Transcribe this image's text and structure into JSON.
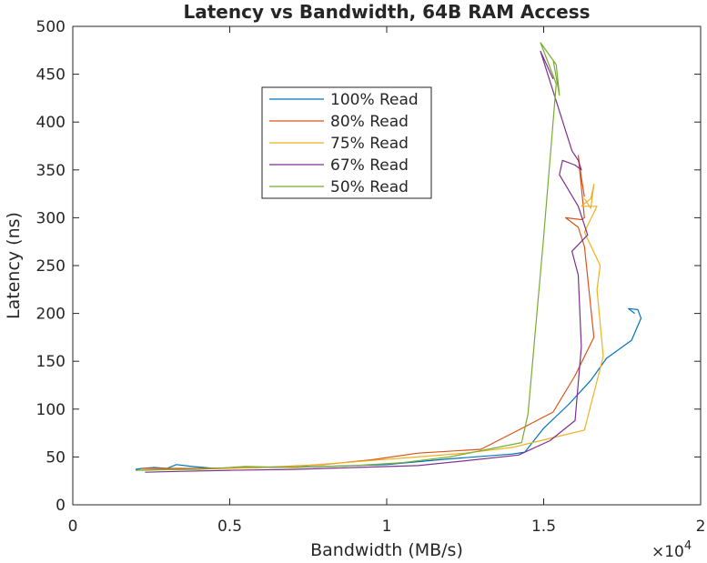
{
  "chart_data": {
    "type": "line",
    "title": "Latency vs Bandwidth, 64B RAM Access",
    "xlabel": "Bandwidth (MB/s)",
    "ylabel": "Latency (ns)",
    "x_multiplier_label": "×10",
    "x_multiplier_exponent": "4",
    "xlim": [
      0,
      20000
    ],
    "ylim": [
      0,
      500
    ],
    "x_ticks": [
      0,
      5000,
      10000,
      15000,
      20000
    ],
    "x_tick_labels": [
      "0",
      "0.5",
      "1",
      "1.5",
      "2"
    ],
    "y_ticks": [
      0,
      50,
      100,
      150,
      200,
      250,
      300,
      350,
      400,
      450,
      500
    ],
    "y_tick_labels": [
      "0",
      "50",
      "100",
      "150",
      "200",
      "250",
      "300",
      "350",
      "400",
      "450",
      "500"
    ],
    "grid": false,
    "legend_position": "top-center-left",
    "series": [
      {
        "name": "100% Read",
        "color": "#0072BD",
        "points": [
          [
            2000,
            37
          ],
          [
            2200,
            38
          ],
          [
            2600,
            39
          ],
          [
            3000,
            38
          ],
          [
            3300,
            42
          ],
          [
            3800,
            40
          ],
          [
            4500,
            38
          ],
          [
            6000,
            39
          ],
          [
            8000,
            40
          ],
          [
            10000,
            42
          ],
          [
            12000,
            48
          ],
          [
            14000,
            53
          ],
          [
            14400,
            55
          ],
          [
            15000,
            80
          ],
          [
            15800,
            105
          ],
          [
            16500,
            130
          ],
          [
            17000,
            153
          ],
          [
            17800,
            172
          ],
          [
            18100,
            195
          ],
          [
            18000,
            204
          ],
          [
            17700,
            205
          ],
          [
            17900,
            200
          ]
        ]
      },
      {
        "name": "80% Read",
        "color": "#D95319",
        "points": [
          [
            2200,
            38
          ],
          [
            3000,
            38
          ],
          [
            4000,
            38
          ],
          [
            6000,
            39
          ],
          [
            8000,
            42
          ],
          [
            9500,
            47
          ],
          [
            11000,
            54
          ],
          [
            13000,
            58
          ],
          [
            14200,
            78
          ],
          [
            15300,
            97
          ],
          [
            16000,
            135
          ],
          [
            16600,
            175
          ],
          [
            16300,
            270
          ],
          [
            16100,
            290
          ],
          [
            15700,
            300
          ],
          [
            16200,
            298
          ],
          [
            16300,
            300
          ],
          [
            16100,
            365
          ],
          [
            16200,
            342
          ],
          [
            16300,
            322
          ]
        ]
      },
      {
        "name": "75% Read",
        "color": "#EDB120",
        "points": [
          [
            2200,
            36
          ],
          [
            3500,
            37
          ],
          [
            5000,
            38
          ],
          [
            7000,
            40
          ],
          [
            9000,
            45
          ],
          [
            11000,
            50
          ],
          [
            12500,
            54
          ],
          [
            14000,
            60
          ],
          [
            14900,
            67
          ],
          [
            16300,
            78
          ],
          [
            16900,
            155
          ],
          [
            16700,
            225
          ],
          [
            16800,
            250
          ],
          [
            16300,
            285
          ],
          [
            16700,
            312
          ],
          [
            16200,
            312
          ],
          [
            16500,
            320
          ],
          [
            16600,
            335
          ],
          [
            16500,
            310
          ],
          [
            16300,
            320
          ]
        ]
      },
      {
        "name": "67% Read",
        "color": "#7E2F8E",
        "points": [
          [
            2300,
            34
          ],
          [
            3500,
            35
          ],
          [
            5000,
            36
          ],
          [
            7000,
            37
          ],
          [
            9000,
            39
          ],
          [
            11000,
            41
          ],
          [
            12500,
            46
          ],
          [
            14200,
            52
          ],
          [
            15200,
            67
          ],
          [
            16000,
            88
          ],
          [
            16200,
            165
          ],
          [
            16100,
            240
          ],
          [
            15900,
            265
          ],
          [
            16400,
            282
          ],
          [
            16100,
            312
          ],
          [
            15500,
            345
          ],
          [
            15600,
            360
          ],
          [
            16000,
            355
          ],
          [
            16200,
            350
          ],
          [
            16100,
            360
          ],
          [
            15900,
            370
          ],
          [
            14900,
            474
          ],
          [
            15300,
            445
          ]
        ]
      },
      {
        "name": "50% Read",
        "color": "#77AC30",
        "points": [
          [
            2000,
            36
          ],
          [
            3000,
            37
          ],
          [
            4000,
            37
          ],
          [
            5500,
            40
          ],
          [
            7000,
            39
          ],
          [
            9000,
            41
          ],
          [
            10500,
            44
          ],
          [
            12000,
            50
          ],
          [
            14300,
            65
          ],
          [
            14500,
            95
          ],
          [
            15000,
            280
          ],
          [
            15400,
            440
          ],
          [
            14900,
            483
          ],
          [
            15400,
            460
          ],
          [
            15500,
            428
          ],
          [
            15300,
            465
          ]
        ]
      }
    ]
  }
}
